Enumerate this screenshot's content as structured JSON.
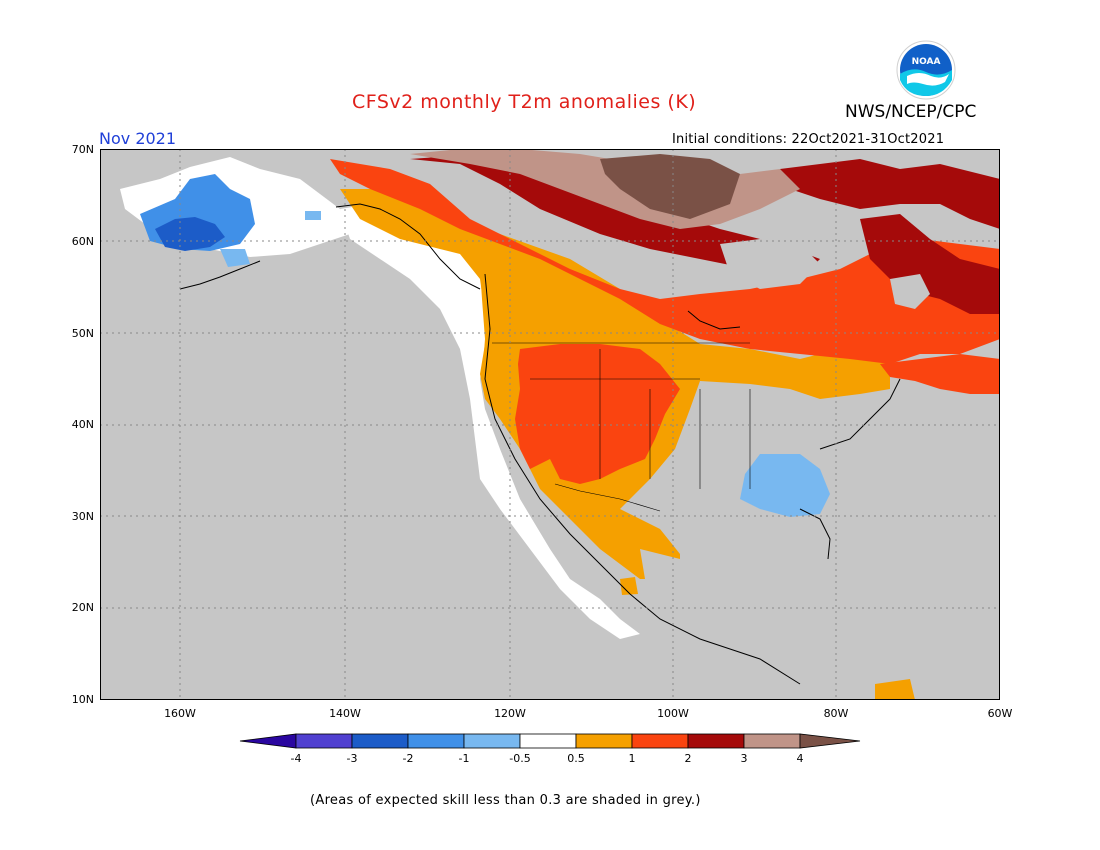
{
  "header": {
    "title": "CFSv2 monthly T2m anomalies (K)",
    "month": "Nov 2021",
    "agency": "NWS/NCEP/CPC",
    "initial_conditions": "Initial conditions: 22Oct2021-31Oct2021",
    "logo_text": "NOAA"
  },
  "map": {
    "lat_labels": [
      "70N",
      "60N",
      "50N",
      "40N",
      "30N",
      "20N",
      "10N"
    ],
    "lon_labels": [
      "160W",
      "140W",
      "120W",
      "100W",
      "80W",
      "60W"
    ],
    "colors": {
      "ocean": "#c6c6c6",
      "white": "#ffffff",
      "orange": "#f5a000",
      "red_orange": "#fa4410",
      "dark_red": "#a50a0a",
      "tan": "#c09488",
      "brown": "#7a5146",
      "light_blue": "#78b8f0",
      "blue": "#4090e8",
      "dark_blue": "#1c5cc8"
    }
  },
  "colorbar": {
    "labels": [
      "-4",
      "-3",
      "-2",
      "-1",
      "-0.5",
      "0.5",
      "1",
      "2",
      "3",
      "4"
    ],
    "colors": [
      "#2a06a0",
      "#5040d0",
      "#1c5cc8",
      "#4090e8",
      "#78b8f0",
      "#ffffff",
      "#f5a000",
      "#fa4410",
      "#a50a0a",
      "#c09488",
      "#7a5146"
    ]
  },
  "footnote": "(Areas of expected skill less than 0.3 are shaded in grey.)"
}
